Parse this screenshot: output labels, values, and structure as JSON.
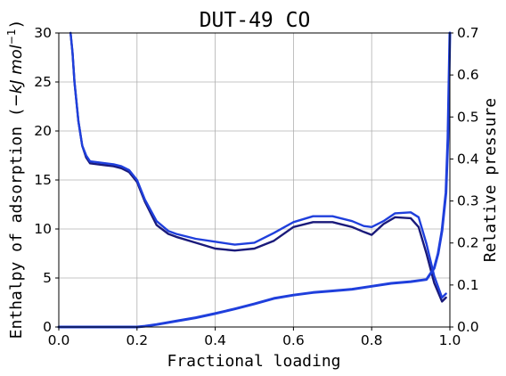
{
  "chart_data": {
    "type": "line",
    "title": "DUT-49 CO",
    "xlabel": "Fractional loading",
    "ylabel": "Enthalpy of adsorption (−kJ mol⁻¹)",
    "ylabel_left_prefix": "Enthalpy of adsorption (",
    "ylabel_left_math": "−kJ mol",
    "ylabel_left_sup": "−1",
    "ylabel_left_suffix": ")",
    "y2label": "Relative pressure",
    "xlim": [
      0.0,
      1.0
    ],
    "ylim": [
      0,
      30
    ],
    "y2lim": [
      0.0,
      0.7
    ],
    "xticks": [
      "0.0",
      "0.2",
      "0.4",
      "0.6",
      "0.8",
      "1.0"
    ],
    "yticks": [
      "0",
      "5",
      "10",
      "15",
      "20",
      "25",
      "30"
    ],
    "y2ticks": [
      "0.0",
      "0.1",
      "0.2",
      "0.3",
      "0.4",
      "0.5",
      "0.6",
      "0.7"
    ],
    "grid": true,
    "colors": {
      "enthalpy_dark": "#1a1a7a",
      "enthalpy_blue": "#1f3fdc",
      "pressure": "#1f3fdc"
    },
    "series": [
      {
        "axis": "left",
        "color_key": "enthalpy_dark",
        "x": [
          0.03,
          0.035,
          0.04,
          0.05,
          0.06,
          0.07,
          0.08,
          0.1,
          0.12,
          0.14,
          0.16,
          0.18,
          0.2,
          0.22,
          0.25,
          0.28,
          0.3,
          0.35,
          0.4,
          0.45,
          0.5,
          0.55,
          0.6,
          0.65,
          0.7,
          0.75,
          0.78,
          0.8,
          0.83,
          0.86,
          0.9,
          0.92,
          0.94,
          0.96,
          0.98,
          0.99
        ],
        "y": [
          30,
          28,
          25,
          21,
          18.5,
          17.3,
          16.7,
          16.6,
          16.5,
          16.4,
          16.2,
          15.8,
          14.8,
          12.8,
          10.4,
          9.5,
          9.2,
          8.6,
          8.0,
          7.8,
          8.0,
          8.8,
          10.2,
          10.7,
          10.7,
          10.2,
          9.7,
          9.4,
          10.5,
          11.2,
          11.1,
          10.2,
          7.5,
          4.5,
          2.6,
          3.0
        ]
      },
      {
        "axis": "left",
        "color_key": "enthalpy_blue",
        "x": [
          0.03,
          0.035,
          0.04,
          0.05,
          0.06,
          0.07,
          0.08,
          0.1,
          0.12,
          0.14,
          0.16,
          0.18,
          0.2,
          0.22,
          0.25,
          0.28,
          0.3,
          0.35,
          0.4,
          0.45,
          0.5,
          0.55,
          0.6,
          0.65,
          0.7,
          0.75,
          0.78,
          0.8,
          0.83,
          0.86,
          0.9,
          0.92,
          0.94,
          0.96,
          0.98,
          0.99
        ],
        "y": [
          30,
          28,
          25,
          21,
          18.5,
          17.5,
          16.9,
          16.8,
          16.7,
          16.6,
          16.4,
          16.0,
          15.0,
          13.0,
          10.8,
          9.8,
          9.5,
          9.0,
          8.7,
          8.4,
          8.6,
          9.6,
          10.7,
          11.3,
          11.3,
          10.8,
          10.3,
          10.2,
          10.8,
          11.6,
          11.7,
          11.2,
          8.5,
          5.2,
          3.0,
          3.4
        ]
      },
      {
        "axis": "right",
        "color_key": "pressure",
        "x": [
          0.0,
          0.05,
          0.1,
          0.15,
          0.2,
          0.22,
          0.25,
          0.3,
          0.35,
          0.4,
          0.45,
          0.5,
          0.55,
          0.6,
          0.65,
          0.7,
          0.75,
          0.8,
          0.85,
          0.9,
          0.94,
          0.96,
          0.97,
          0.98,
          0.99,
          0.995,
          1.0
        ],
        "y": [
          0.0,
          0.0,
          0.0,
          0.0,
          0.0,
          0.002,
          0.006,
          0.014,
          0.022,
          0.032,
          0.043,
          0.055,
          0.068,
          0.076,
          0.082,
          0.086,
          0.09,
          0.097,
          0.104,
          0.108,
          0.113,
          0.14,
          0.175,
          0.23,
          0.32,
          0.45,
          0.7
        ]
      }
    ]
  }
}
